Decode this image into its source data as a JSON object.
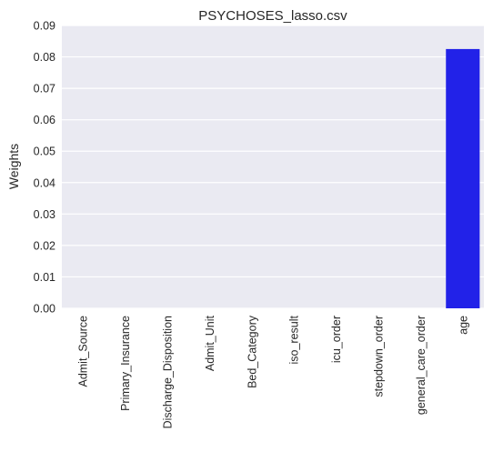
{
  "chart_data": {
    "type": "bar",
    "title": "PSYCHOSES_lasso.csv",
    "xlabel": "",
    "ylabel": "Weights",
    "categories": [
      "Admit_Source",
      "Primary_Insurance",
      "Discharge_Disposition",
      "Admit_Unit",
      "Bed_Category",
      "iso_result",
      "icu_order",
      "stepdown_order",
      "general_care_order",
      "age"
    ],
    "values": [
      0.0,
      0.0,
      0.0,
      0.0,
      0.0,
      0.0,
      0.0,
      0.0,
      0.0,
      0.0825
    ],
    "ylim": [
      0,
      0.09
    ],
    "yticks": [
      "0.00",
      "0.01",
      "0.02",
      "0.03",
      "0.04",
      "0.05",
      "0.06",
      "0.07",
      "0.08",
      "0.09"
    ],
    "grid": true,
    "bar_color": "#2222e8",
    "background": "#eaeaf2",
    "grid_color": "#ffffff"
  }
}
